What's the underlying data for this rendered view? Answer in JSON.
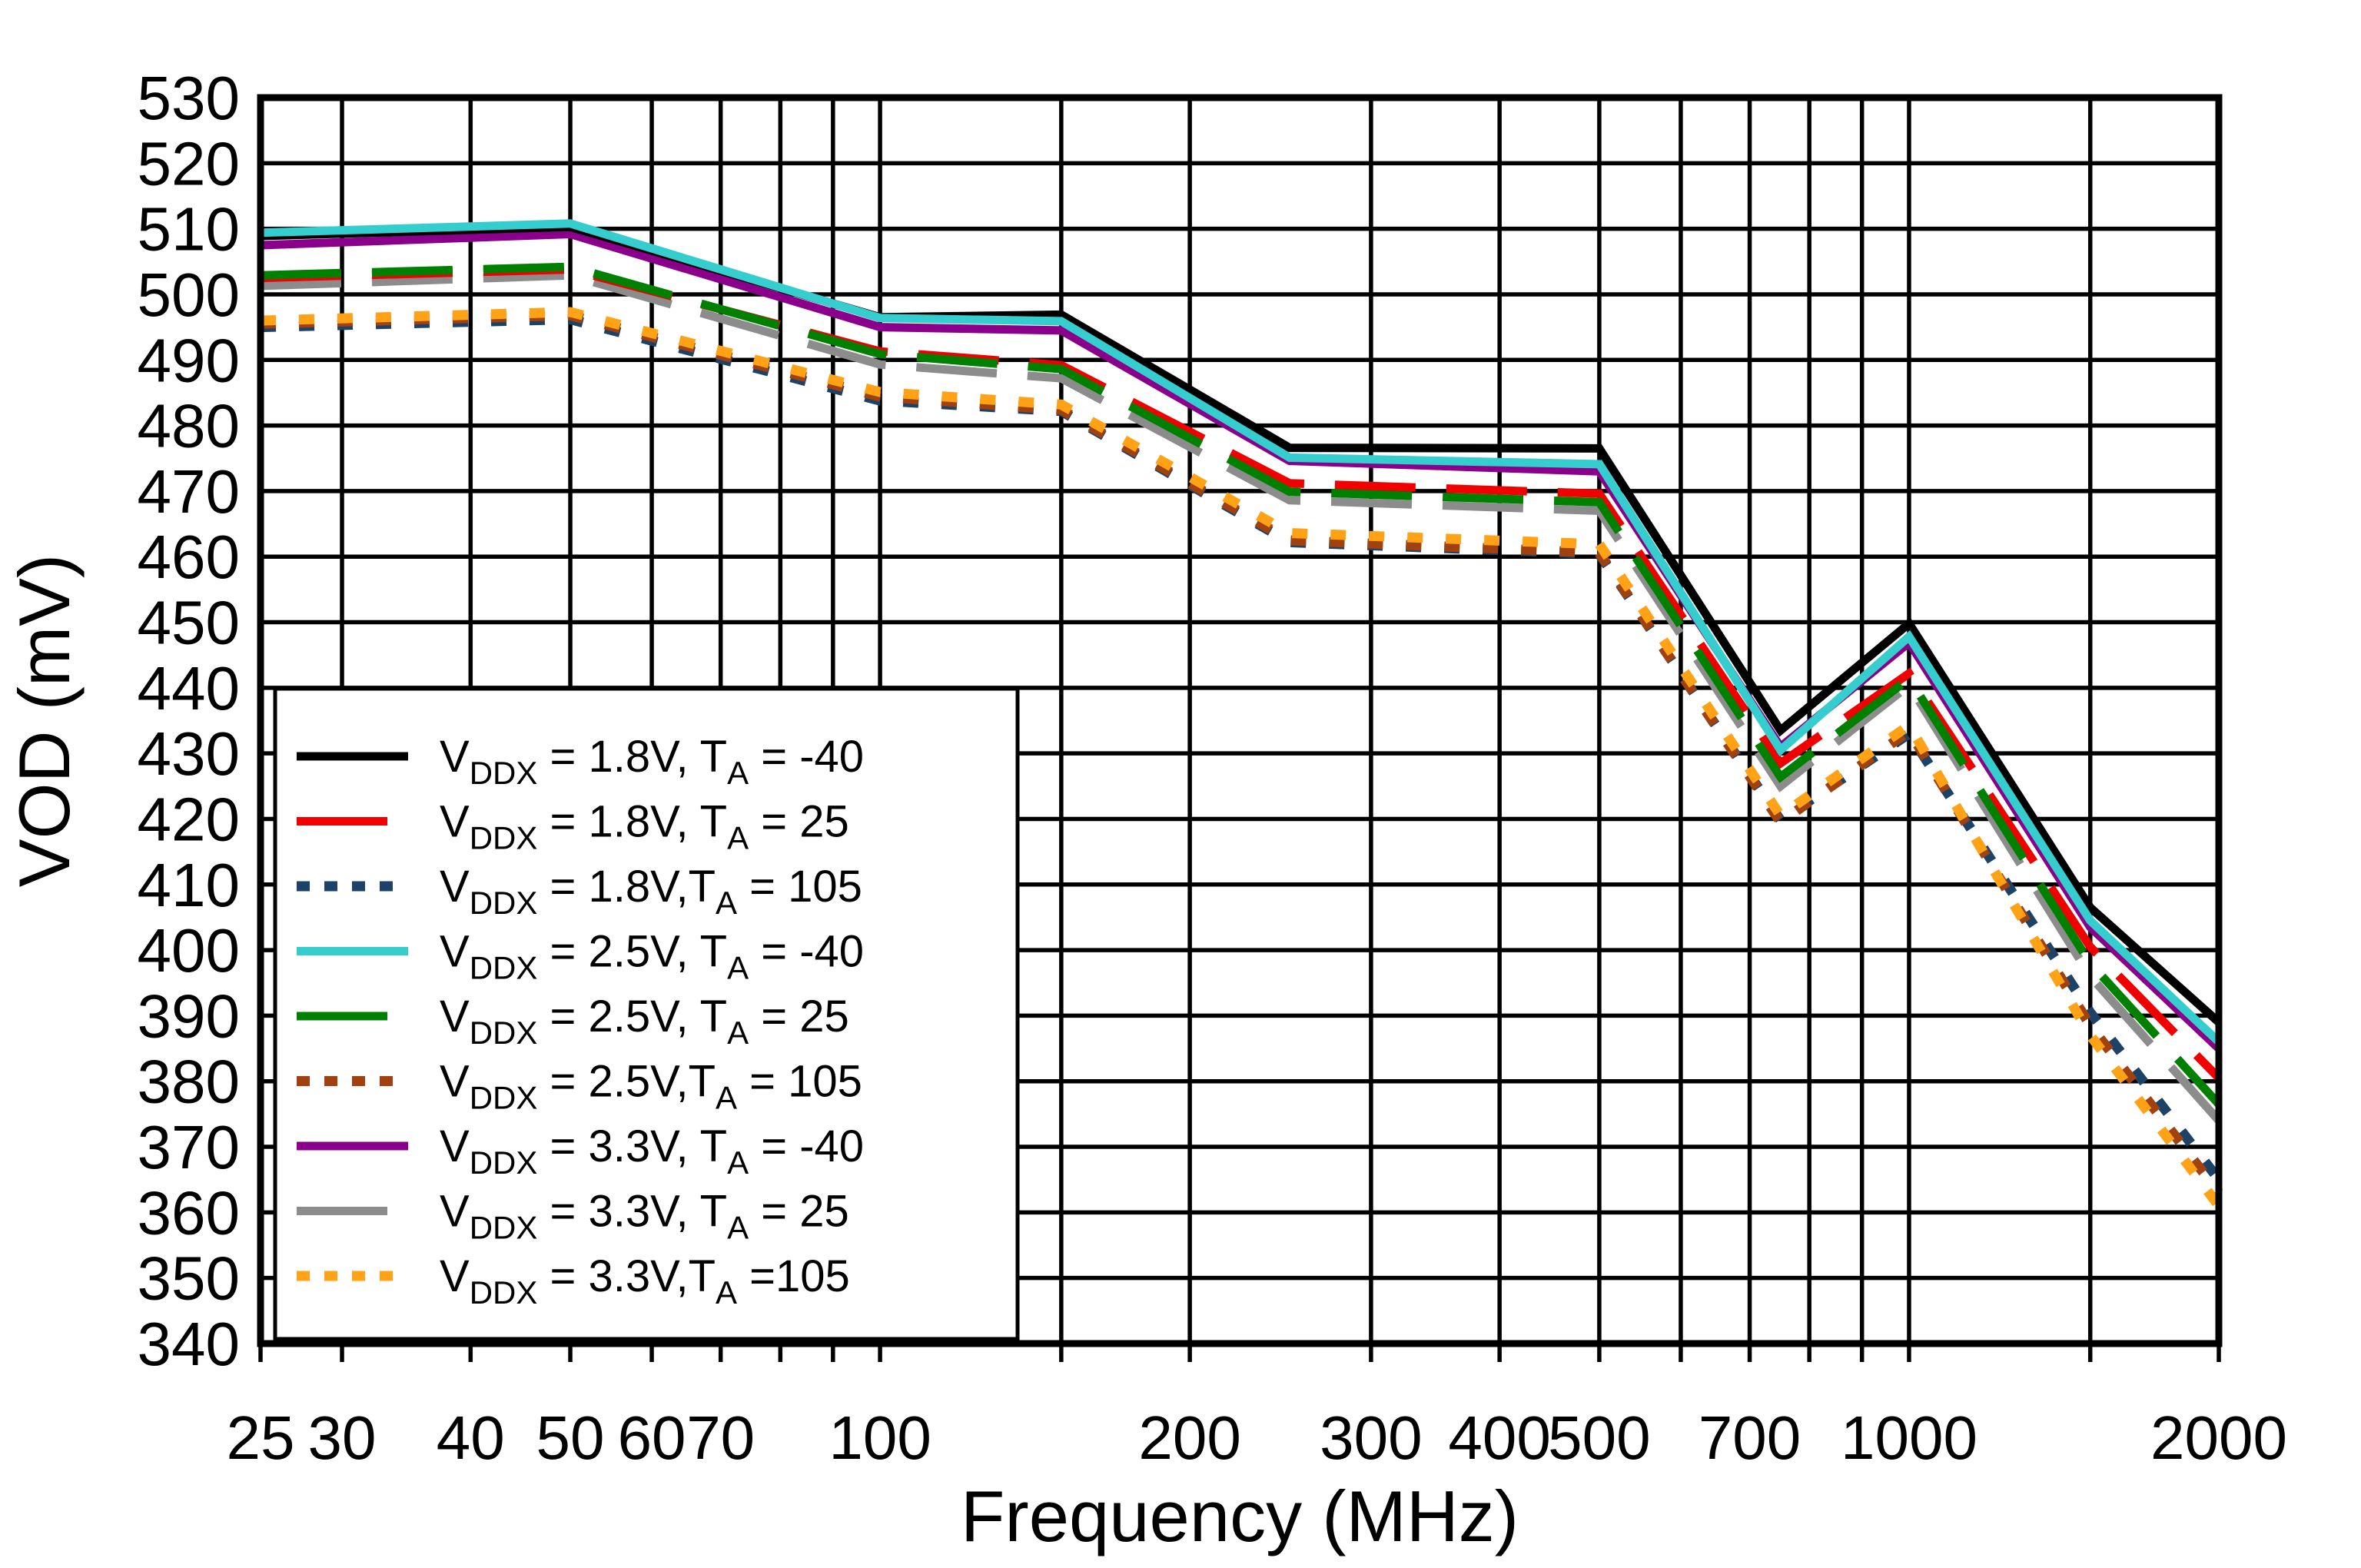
{
  "chart_data": {
    "type": "line",
    "title": "",
    "xlabel": "Frequency (MHz)",
    "ylabel": "VOD (mV)",
    "x_scale": "log",
    "xlim": [
      25,
      2000
    ],
    "ylim": [
      340,
      530
    ],
    "y_tick_step": 10,
    "grid": true,
    "background_color": "#FFFFFF",
    "axis_color": "#000000",
    "legend_position": "bottom-left",
    "x": [
      25,
      50,
      100,
      150,
      250,
      500,
      750,
      1000,
      1500,
      2000
    ],
    "x_gridlines": [
      25,
      30,
      40,
      50,
      60,
      70,
      80,
      90,
      100,
      150,
      200,
      300,
      400,
      500,
      600,
      700,
      800,
      900,
      1000,
      1500,
      2000
    ],
    "x_tick_labels": [
      {
        "f": 25,
        "text": "25"
      },
      {
        "f": 30,
        "text": "30"
      },
      {
        "f": 40,
        "text": "40"
      },
      {
        "f": 50,
        "text": "50"
      },
      {
        "f": 60,
        "text": "60"
      },
      {
        "f": 70,
        "text": "70"
      },
      {
        "f": 100,
        "text": "100"
      },
      {
        "f": 200,
        "text": "200"
      },
      {
        "f": 300,
        "text": "300"
      },
      {
        "f": 400,
        "text": "400"
      },
      {
        "f": 500,
        "text": "500"
      },
      {
        "f": 700,
        "text": "700"
      },
      {
        "f": 1000,
        "text": "1000"
      },
      {
        "f": 2000,
        "text": "2000"
      }
    ],
    "series": [
      {
        "name": "vddx-1p8v-ta-minus40",
        "label_pre": "V",
        "label_sub1": "DDX",
        "label_mid": " = 1.8V, T",
        "label_sub2": "A",
        "label_post": " = -40",
        "color": "#000000",
        "style": "solid",
        "z": 7,
        "values": [
          508.9,
          510.3,
          496.5,
          496.9,
          476.6,
          476.5,
          433.5,
          449.8,
          406.5,
          389.0
        ]
      },
      {
        "name": "vddx-1p8v-ta-25",
        "label_pre": "V",
        "label_sub1": "DDX",
        "label_mid": " = 1.8V, T",
        "label_sub2": "A",
        "label_post": " = 25",
        "color": "#F00000",
        "style": "dash",
        "z": 4,
        "values": [
          502.5,
          503.8,
          491.3,
          489.2,
          471.2,
          469.6,
          428.5,
          442.2,
          400.5,
          380.5
        ]
      },
      {
        "name": "vddx-1p8v-ta-105",
        "label_pre": "V",
        "label_sub1": "DDX",
        "label_mid": " = 1.8V,T",
        "label_sub2": "A",
        "label_post": " = 105",
        "color": "#1C4268",
        "style": "dot",
        "z": 0,
        "values": [
          495.0,
          496.2,
          483.8,
          482.2,
          462.2,
          460.4,
          419.8,
          433.0,
          390.5,
          365.0
        ]
      },
      {
        "name": "vddx-2p5v-ta-minus40",
        "label_pre": "V",
        "label_sub1": "DDX",
        "label_mid": " = 2.5V, T",
        "label_sub2": "A",
        "label_post": " = -40",
        "color": "#35CDCD",
        "style": "solid",
        "z": 8,
        "values": [
          509.4,
          510.8,
          496.4,
          495.9,
          475.1,
          474.1,
          430.5,
          447.8,
          404.5,
          386.0
        ]
      },
      {
        "name": "vddx-2p5v-ta-25",
        "label_pre": "V",
        "label_sub1": "DDX",
        "label_mid": " = 2.5V, T",
        "label_sub2": "A",
        "label_post": " = 25",
        "color": "#008000",
        "style": "dash",
        "z": 5,
        "values": [
          502.9,
          504.2,
          490.9,
          488.6,
          469.9,
          468.3,
          426.4,
          441.4,
          398.0,
          376.5
        ]
      },
      {
        "name": "vddx-2p5v-ta-105",
        "label_pre": "V",
        "label_sub1": "DDX",
        "label_mid": " = 2.5V,T",
        "label_sub2": "A",
        "label_post": " = 105",
        "color": "#A0410F",
        "style": "dot",
        "z": 1,
        "values": [
          495.5,
          496.8,
          484.4,
          482.4,
          462.5,
          460.6,
          419.5,
          433.4,
          388.5,
          363.0
        ]
      },
      {
        "name": "vddx-3p3v-ta-minus40",
        "label_pre": "V",
        "label_sub1": "DDX",
        "label_mid": " = 3.3V, T",
        "label_sub2": "A",
        "label_post": " = -40",
        "color": "#8A008A",
        "style": "solid",
        "z": 6,
        "values": [
          507.5,
          509.2,
          495.0,
          494.5,
          474.6,
          473.0,
          431.0,
          446.9,
          403.5,
          385.0
        ]
      },
      {
        "name": "vddx-3p3v-ta-25",
        "label_pre": "V",
        "label_sub1": "DDX",
        "label_mid": " = 3.3V, T",
        "label_sub2": "A",
        "label_post": " = 25",
        "color": "#8C8C8C",
        "style": "dash",
        "z": 3,
        "values": [
          501.3,
          502.9,
          489.3,
          487.2,
          468.6,
          467.0,
          425.0,
          440.4,
          396.0,
          374.0
        ]
      },
      {
        "name": "vddx-3p3v-ta-105",
        "label_pre": "V",
        "label_sub1": "DDX",
        "label_mid": " = 3.3V,T",
        "label_sub2": "A",
        "label_post": " =105",
        "color": "#FFA216",
        "style": "dot",
        "z": 2,
        "values": [
          496.0,
          497.3,
          485.1,
          483.2,
          463.6,
          461.9,
          420.5,
          434.3,
          387.0,
          361.0
        ]
      }
    ]
  }
}
